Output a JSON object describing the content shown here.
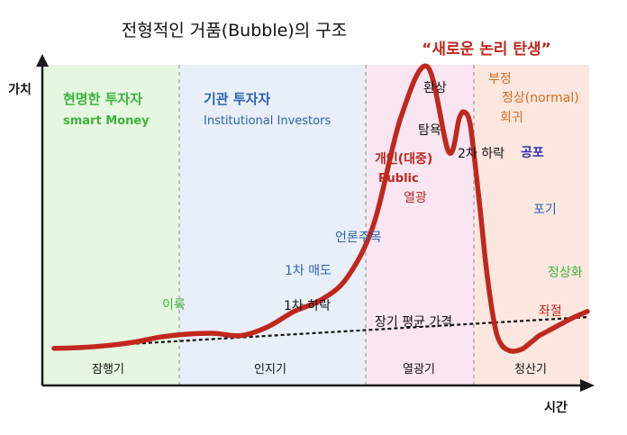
{
  "chart_data": {
    "type": "line",
    "title": "전형적인 거품(Bubble)의 구조",
    "subtitle": "“새로운 논리 탄생”",
    "xlabel": "시간",
    "ylabel": "가치",
    "phases": [
      {
        "name": "잠행기",
        "color": "#e6f7e1"
      },
      {
        "name": "인지기",
        "color": "#e9eff8"
      },
      {
        "name": "열광기",
        "color": "#f9e6f2"
      },
      {
        "name": "청산기",
        "color": "#fbe7df"
      }
    ],
    "actors": [
      {
        "title": "현명한 투자자",
        "subtitle": "smart Money",
        "color": "#3cb43c"
      },
      {
        "title": "기관 투자자",
        "subtitle": "Institutional Investors",
        "color": "#2c62b6"
      }
    ],
    "series": [
      {
        "name": "가치",
        "color": "#c0271d",
        "x": [
          0,
          5,
          10,
          15,
          20,
          25,
          30,
          35,
          40,
          45,
          50,
          55,
          60,
          65,
          70,
          74,
          76,
          77,
          78,
          79,
          80,
          81,
          82,
          83,
          84,
          85,
          86,
          87,
          88,
          89,
          90,
          91,
          92,
          93,
          95,
          97,
          100
        ],
        "values": [
          1.0,
          1.3,
          2.0,
          3.2,
          5.0,
          6.0,
          6.3,
          5.5,
          8.5,
          14.0,
          18.0,
          26.0,
          45.0,
          82.0,
          100.0,
          70.0,
          82.0,
          84.0,
          80.0,
          65.0,
          48.0,
          30.0,
          16.0,
          6.0,
          2.0,
          0.5,
          0.0,
          0.3,
          1.0,
          2.5,
          4.0,
          5.5,
          6.5,
          7.5,
          9.5,
          11.5,
          14.0
        ]
      },
      {
        "name": "장기 평균 가격",
        "style": "dashed",
        "x": [
          0,
          100
        ],
        "values": [
          1.0,
          12.0
        ]
      }
    ],
    "ylim": [
      0,
      100
    ],
    "xlim": [
      0,
      100
    ],
    "annotations": [
      {
        "text": "이륙",
        "color": "#3cb43c"
      },
      {
        "text": "1차 매도",
        "color": "#2c62b6"
      },
      {
        "text": "1차 하락",
        "color": "#111111"
      },
      {
        "text": "언론주목",
        "color": "#2c62b6"
      },
      {
        "text": "개인(대중)",
        "color": "#c0271d"
      },
      {
        "text": "Public",
        "color": "#c0271d"
      },
      {
        "text": "열광",
        "color": "#c0271d"
      },
      {
        "text": "탐욕",
        "color": "#111111"
      },
      {
        "text": "환상",
        "color": "#111111"
      },
      {
        "text": "부정",
        "color": "#d96a1e"
      },
      {
        "text": "정상(normal)",
        "color": "#d96a1e"
      },
      {
        "text": "회귀",
        "color": "#d96a1e"
      },
      {
        "text": "2차 하락",
        "color": "#111111"
      },
      {
        "text": "공포",
        "color": "#3030b0"
      },
      {
        "text": "포기",
        "color": "#2c62b6"
      },
      {
        "text": "정상화",
        "color": "#3cb43c"
      },
      {
        "text": "좌절",
        "color": "#c0271d"
      },
      {
        "text": "장기 평균 가격",
        "color": "#111111"
      }
    ]
  }
}
